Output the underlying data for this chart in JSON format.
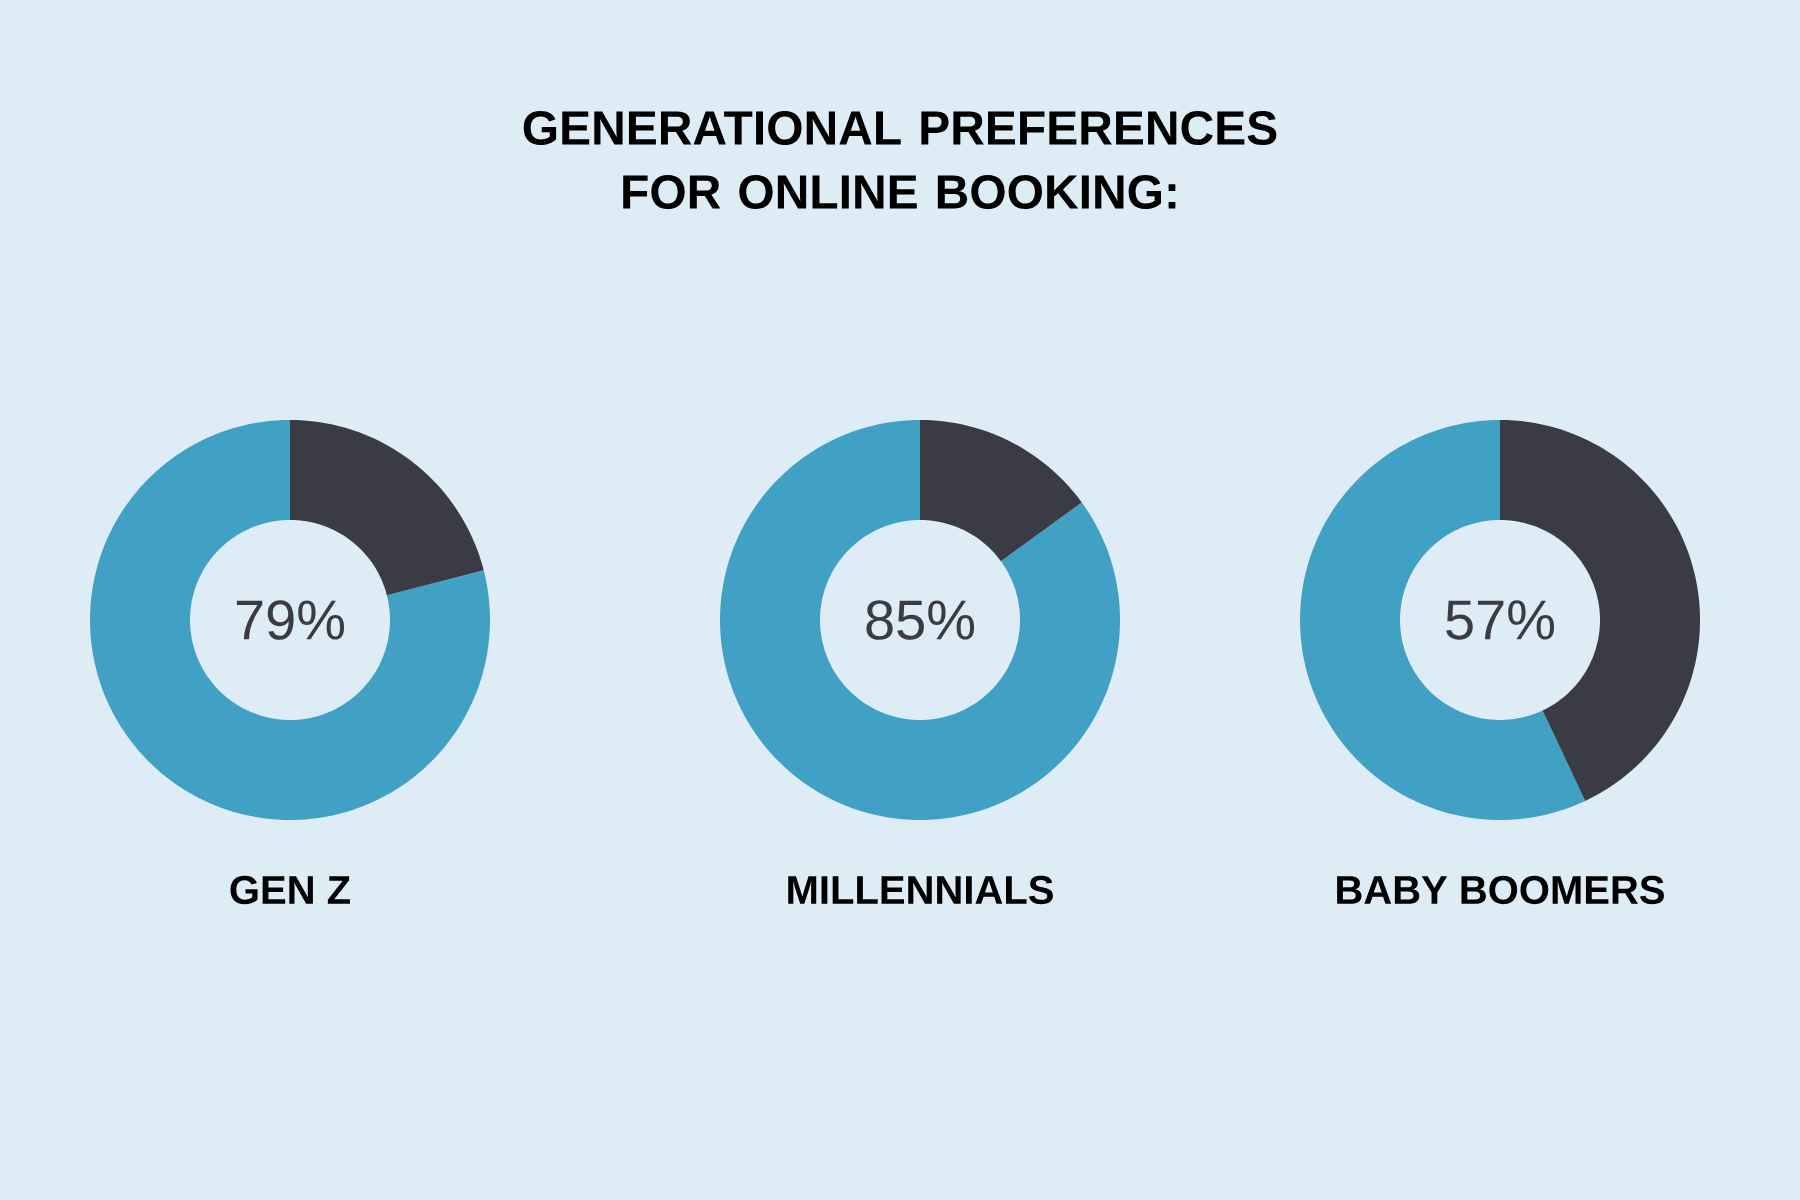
{
  "chart_data": [
    {
      "type": "other",
      "title": "GENERATIONAL PREFERENCES FOR ONLINE BOOKING:"
    },
    {
      "type": "donut",
      "xlabel": "GEN Z",
      "categories": [
        null,
        null
      ],
      "values": [
        79,
        21
      ],
      "colors": [
        "#40a1c5",
        "#3b3b45"
      ],
      "annotations": [
        "79%"
      ]
    },
    {
      "type": "donut",
      "xlabel": "MILLENNIALS",
      "categories": [
        null,
        null
      ],
      "values": [
        85,
        15
      ],
      "colors": [
        "#40a1c5",
        "#3b3b45"
      ],
      "annotations": [
        "85%"
      ]
    },
    {
      "type": "donut",
      "xlabel": "BABY BOOMERS",
      "categories": [
        null,
        null
      ],
      "values": [
        57,
        43
      ],
      "colors": [
        "#40a1c5",
        "#3b3b45"
      ],
      "annotations": [
        "57%"
      ]
    }
  ]
}
